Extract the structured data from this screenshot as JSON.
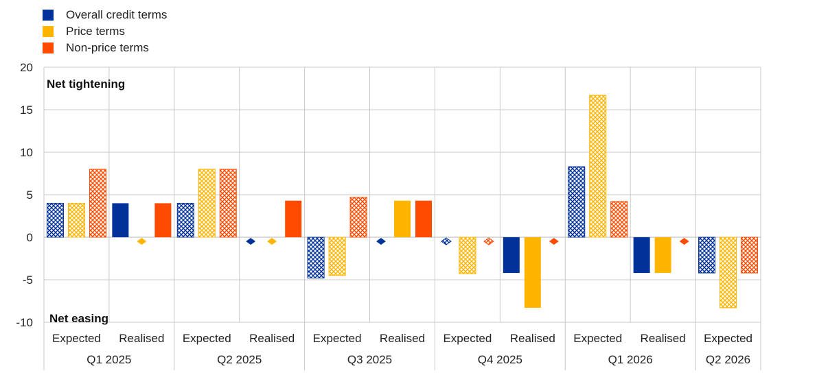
{
  "chart_data": {
    "type": "bar",
    "ylim": [
      -10,
      20
    ],
    "yticks": [
      -10,
      -5,
      0,
      5,
      10,
      15,
      20
    ],
    "grid": true,
    "legend_position": "top-left",
    "annotations": {
      "top": "Net tightening",
      "bottom": "Net easing"
    },
    "groups": [
      "Q1 2025",
      "Q2 2025",
      "Q3 2025",
      "Q4 2025",
      "Q1 2026",
      "Q2 2026"
    ],
    "categories": [
      {
        "group": "Q1 2025",
        "label": "Expected",
        "kind": "expected"
      },
      {
        "group": "Q1 2025",
        "label": "Realised",
        "kind": "realised"
      },
      {
        "group": "Q2 2025",
        "label": "Expected",
        "kind": "expected"
      },
      {
        "group": "Q2 2025",
        "label": "Realised",
        "kind": "realised"
      },
      {
        "group": "Q3 2025",
        "label": "Expected",
        "kind": "expected"
      },
      {
        "group": "Q3 2025",
        "label": "Realised",
        "kind": "realised"
      },
      {
        "group": "Q4 2025",
        "label": "Expected",
        "kind": "expected"
      },
      {
        "group": "Q4 2025",
        "label": "Realised",
        "kind": "realised"
      },
      {
        "group": "Q1 2026",
        "label": "Expected",
        "kind": "expected"
      },
      {
        "group": "Q1 2026",
        "label": "Realised",
        "kind": "realised"
      },
      {
        "group": "Q2 2026",
        "label": "Expected",
        "kind": "expected"
      }
    ],
    "series": [
      {
        "name": "Overall credit terms",
        "color": "#003299",
        "values": [
          4,
          4,
          4,
          0,
          -4.8,
          0,
          0,
          -4.2,
          8.3,
          -4.2,
          -4.2
        ]
      },
      {
        "name": "Price terms",
        "color": "#FFB400",
        "values": [
          4,
          0,
          8,
          0,
          -4.5,
          4.3,
          -4.3,
          -8.3,
          16.7,
          -4.2,
          -8.3
        ]
      },
      {
        "name": "Non-price terms",
        "color": "#FF4B00",
        "values": [
          8,
          4,
          8,
          4.3,
          4.7,
          4.3,
          0,
          0,
          4.2,
          0,
          -4.2
        ]
      }
    ]
  }
}
